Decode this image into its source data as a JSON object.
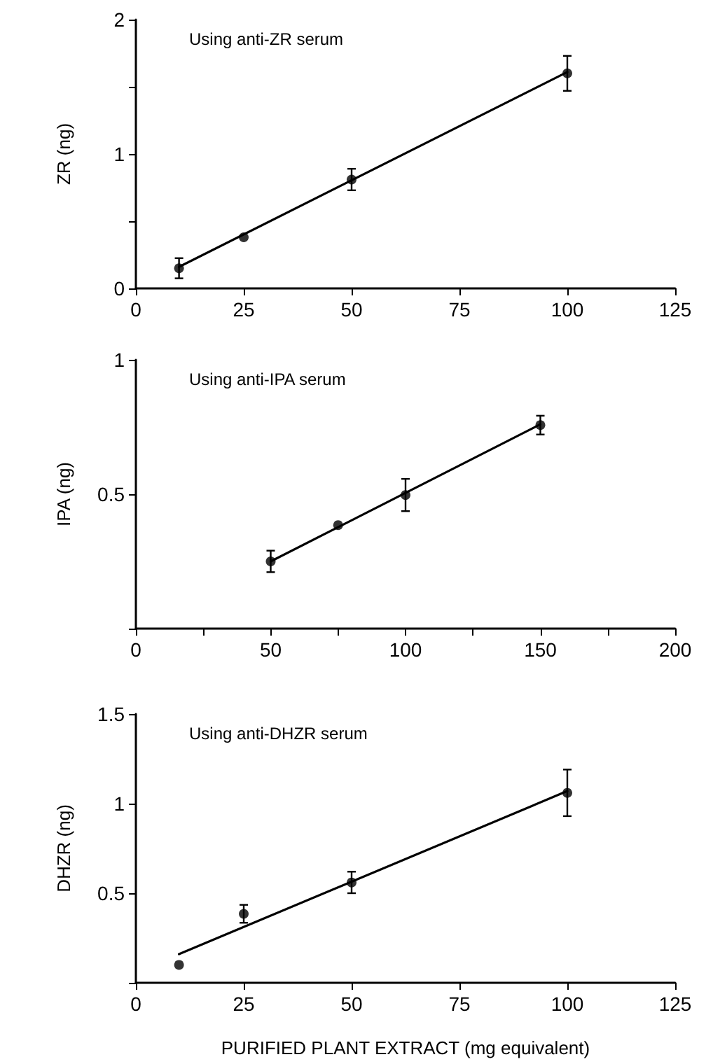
{
  "chart_data": [
    {
      "type": "scatter",
      "ylabel": "ZR (ng)",
      "annotations": [
        "Using anti-ZR serum"
      ],
      "xlim": [
        0,
        125
      ],
      "xticks": [
        0,
        25,
        50,
        75,
        100,
        125
      ],
      "ylim": [
        0,
        2
      ],
      "yticks": [
        0,
        {
          "value": 0.5,
          "label": null
        },
        1,
        {
          "value": 1.5,
          "label": null
        },
        2
      ],
      "grid": false,
      "series": [
        {
          "color": "#000000",
          "marker": "circle",
          "x": [
            10,
            25,
            50,
            100
          ],
          "values": [
            0.15,
            0.38,
            0.81,
            1.6
          ],
          "errors": [
            0.075,
            null,
            0.08,
            0.13
          ]
        },
        {
          "type": "line",
          "marker": "none",
          "color": "#000000",
          "line_style": "solid",
          "x": [
            10,
            100
          ],
          "values": [
            0.16,
            1.61
          ]
        }
      ]
    },
    {
      "type": "scatter",
      "ylabel": "IPA (ng)",
      "annotations": [
        "Using anti-IPA serum"
      ],
      "xlim": [
        0,
        200
      ],
      "xticks": [
        0,
        {
          "value": 25,
          "label": null
        },
        50,
        {
          "value": 75,
          "label": null
        },
        100,
        {
          "value": 125,
          "label": null
        },
        150,
        {
          "value": 175,
          "label": null
        },
        200
      ],
      "ylim": [
        0,
        1
      ],
      "yticks": [
        {
          "value": 0,
          "label": null
        },
        0.5,
        1
      ],
      "grid": false,
      "series": [
        {
          "color": "#000000",
          "marker": "circle",
          "x": [
            50,
            75,
            100,
            150
          ],
          "values": [
            0.25,
            0.385,
            0.497,
            0.757
          ],
          "errors": [
            0.04,
            null,
            0.06,
            0.035
          ]
        },
        {
          "type": "line",
          "marker": "none",
          "color": "#000000",
          "line_style": "solid",
          "x": [
            50,
            150
          ],
          "values": [
            0.25,
            0.76
          ]
        }
      ]
    },
    {
      "type": "scatter",
      "ylabel": "DHZR (ng)",
      "xlabel": "PURIFIED PLANT EXTRACT (mg equivalent)",
      "annotations": [
        "Using anti-DHZR serum"
      ],
      "xlim": [
        0,
        125
      ],
      "xticks": [
        0,
        25,
        50,
        75,
        100,
        125
      ],
      "ylim": [
        0,
        1.5
      ],
      "yticks": [
        {
          "value": 0,
          "label": null
        },
        0.5,
        1,
        1.5
      ],
      "grid": false,
      "series": [
        {
          "color": "#000000",
          "marker": "circle",
          "x": [
            10,
            25,
            50,
            100
          ],
          "values": [
            0.1,
            0.385,
            0.56,
            1.06
          ],
          "errors": [
            null,
            0.05,
            0.06,
            0.13
          ]
        },
        {
          "type": "line",
          "marker": "none",
          "color": "#000000",
          "line_style": "solid",
          "x": [
            10,
            100
          ],
          "values": [
            0.16,
            1.07
          ]
        }
      ]
    }
  ]
}
